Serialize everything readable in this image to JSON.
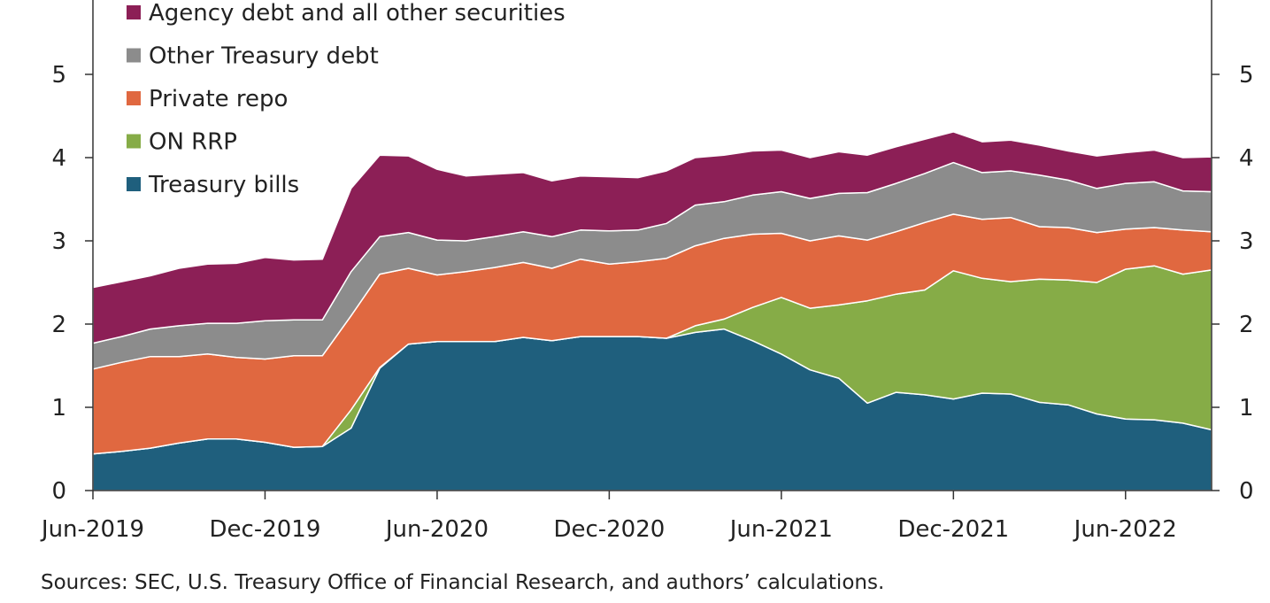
{
  "chart_data": {
    "type": "area",
    "stacked": true,
    "x": [
      "2019-06",
      "2019-07",
      "2019-08",
      "2019-09",
      "2019-10",
      "2019-11",
      "2019-12",
      "2020-01",
      "2020-02",
      "2020-03",
      "2020-04",
      "2020-05",
      "2020-06",
      "2020-07",
      "2020-08",
      "2020-09",
      "2020-10",
      "2020-11",
      "2020-12",
      "2021-01",
      "2021-02",
      "2021-03",
      "2021-04",
      "2021-05",
      "2021-06",
      "2021-07",
      "2021-08",
      "2021-09",
      "2021-10",
      "2021-11",
      "2021-12",
      "2022-01",
      "2022-02",
      "2022-03",
      "2022-04",
      "2022-05",
      "2022-06",
      "2022-07",
      "2022-08",
      "2022-09"
    ],
    "x_tick_labels": [
      "Jun-2019",
      "Dec-2019",
      "Jun-2020",
      "Dec-2020",
      "Jun-2021",
      "Dec-2021",
      "Jun-2022"
    ],
    "x_tick_positions": [
      "2019-06",
      "2019-12",
      "2020-06",
      "2020-12",
      "2021-06",
      "2021-12",
      "2022-06"
    ],
    "ylim": [
      0,
      6
    ],
    "y_ticks": [
      "0",
      "1",
      "2",
      "3",
      "4",
      "5"
    ],
    "legend_placement": "top-left",
    "series": [
      {
        "name": "Treasury bills",
        "color": "#1f5f7d",
        "values": [
          0.44,
          0.47,
          0.51,
          0.57,
          0.62,
          0.62,
          0.58,
          0.52,
          0.53,
          0.75,
          1.47,
          1.76,
          1.79,
          1.79,
          1.79,
          1.84,
          1.8,
          1.85,
          1.85,
          1.85,
          1.83,
          1.9,
          1.94,
          1.8,
          1.64,
          1.45,
          1.35,
          1.05,
          1.18,
          1.15,
          1.1,
          1.17,
          1.16,
          1.06,
          1.03,
          0.92,
          0.86,
          0.85,
          0.81,
          0.73
        ]
      },
      {
        "name": "ON RRP",
        "color": "#86ac47",
        "values": [
          0,
          0,
          0,
          0,
          0,
          0,
          0,
          0,
          0,
          0.22,
          0.01,
          0,
          0,
          0,
          0,
          0,
          0,
          0,
          0,
          0,
          0,
          0.08,
          0.12,
          0.4,
          0.68,
          0.74,
          0.88,
          1.23,
          1.18,
          1.26,
          1.54,
          1.38,
          1.35,
          1.48,
          1.5,
          1.58,
          1.8,
          1.85,
          1.79,
          1.92
        ]
      },
      {
        "name": "Private repo",
        "color": "#e06840",
        "values": [
          1.02,
          1.07,
          1.1,
          1.04,
          1.02,
          0.98,
          1.0,
          1.1,
          1.09,
          1.13,
          1.12,
          0.91,
          0.8,
          0.84,
          0.89,
          0.9,
          0.87,
          0.93,
          0.87,
          0.9,
          0.96,
          0.96,
          0.97,
          0.88,
          0.77,
          0.81,
          0.83,
          0.73,
          0.75,
          0.81,
          0.68,
          0.71,
          0.77,
          0.63,
          0.63,
          0.6,
          0.48,
          0.46,
          0.53,
          0.46
        ]
      },
      {
        "name": "Other Treasury debt",
        "color": "#8c8c8c",
        "values": [
          0.31,
          0.31,
          0.33,
          0.37,
          0.37,
          0.41,
          0.46,
          0.43,
          0.43,
          0.53,
          0.45,
          0.43,
          0.42,
          0.37,
          0.37,
          0.37,
          0.38,
          0.35,
          0.4,
          0.38,
          0.42,
          0.49,
          0.44,
          0.47,
          0.5,
          0.51,
          0.51,
          0.57,
          0.58,
          0.59,
          0.62,
          0.56,
          0.56,
          0.62,
          0.57,
          0.53,
          0.55,
          0.55,
          0.47,
          0.48
        ]
      },
      {
        "name": "Agency debt and all other securities",
        "color": "#8c1f56",
        "values": [
          0.67,
          0.66,
          0.64,
          0.69,
          0.71,
          0.72,
          0.76,
          0.72,
          0.73,
          1.0,
          0.98,
          0.92,
          0.85,
          0.78,
          0.75,
          0.71,
          0.67,
          0.65,
          0.65,
          0.63,
          0.63,
          0.57,
          0.56,
          0.53,
          0.5,
          0.49,
          0.5,
          0.45,
          0.44,
          0.41,
          0.37,
          0.37,
          0.37,
          0.36,
          0.35,
          0.39,
          0.37,
          0.38,
          0.4,
          0.42
        ]
      }
    ],
    "legend_order": [
      "Agency debt and all other securities",
      "Other Treasury debt",
      "Private repo",
      "ON RRP",
      "Treasury bills"
    ]
  },
  "source_note": "Sources: SEC, U.S. Treasury Office of Financial Research, and authors’ calculations."
}
